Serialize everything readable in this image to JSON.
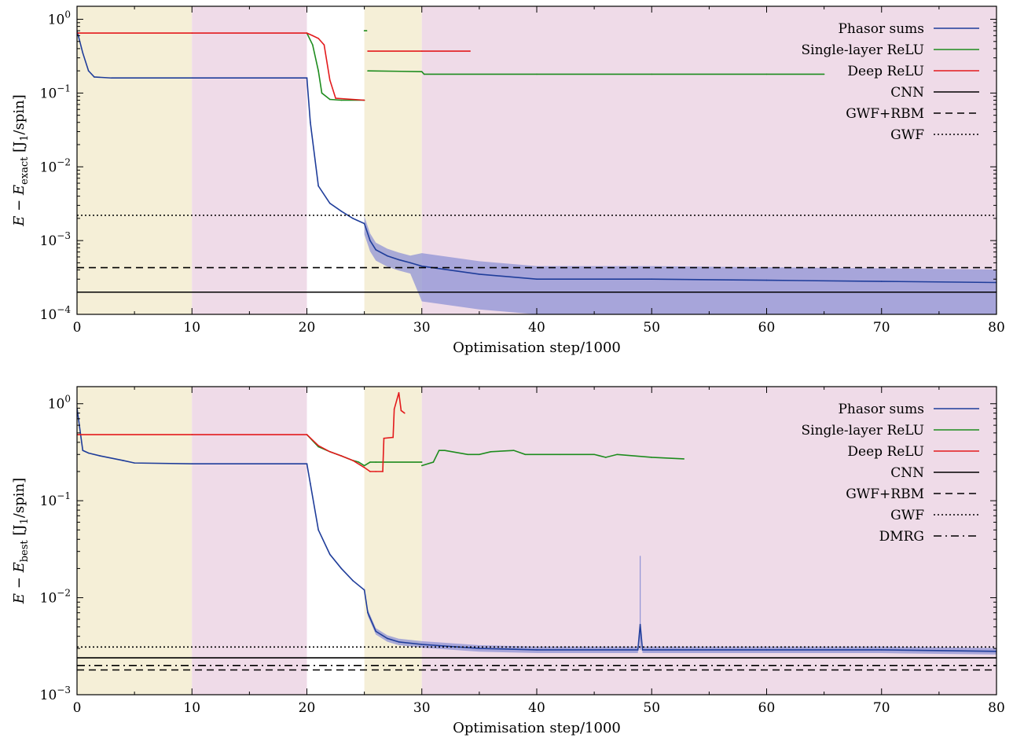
{
  "chart_data": [
    {
      "type": "line",
      "xlabel": "Optimisation step/1000",
      "ylabel": {
        "main": "E − E",
        "sub": "exact",
        "unit": " [J",
        "unit_sub": "1",
        "unit_end": "/spin]"
      },
      "xlim": [
        0,
        80
      ],
      "ylim": [
        0.0001,
        1.5
      ],
      "yscale": "log",
      "x_ticks": [
        "0",
        "10",
        "20",
        "30",
        "40",
        "50",
        "60",
        "70",
        "80"
      ],
      "y_ticks": [
        {
          "base": "10",
          "exp": "0",
          "value": 1
        },
        {
          "base": "10",
          "exp": "−1",
          "value": 0.1
        },
        {
          "base": "10",
          "exp": "−2",
          "value": 0.01
        },
        {
          "base": "10",
          "exp": "−3",
          "value": 0.001
        },
        {
          "base": "10",
          "exp": "−4",
          "value": 0.0001
        }
      ],
      "shaded_regions": [
        {
          "x": [
            0,
            10
          ],
          "color": "#f5efd7"
        },
        {
          "x": [
            10,
            20
          ],
          "color": "#efdbe8"
        },
        {
          "x": [
            25,
            30
          ],
          "color": "#f5efd7"
        },
        {
          "x": [
            30,
            80
          ],
          "color": "#efdbe8"
        }
      ],
      "legend_position": "top-right",
      "series": [
        {
          "name": "Phasor sums",
          "color": "#1f3d9a",
          "style": "solid",
          "x": [
            0,
            0.5,
            1,
            1.5,
            3,
            10,
            20,
            20.3,
            21,
            22,
            23,
            24,
            25,
            25.5,
            26,
            27,
            28,
            29,
            30,
            35,
            40,
            50,
            60,
            70,
            80
          ],
          "y": [
            0.7,
            0.35,
            0.2,
            0.165,
            0.16,
            0.16,
            0.16,
            0.04,
            0.0055,
            0.0032,
            0.0025,
            0.002,
            0.0017,
            0.001,
            0.00075,
            0.00062,
            0.00055,
            0.0005,
            0.00045,
            0.00035,
            0.0003,
            0.0003,
            0.00029,
            0.00028,
            0.00027
          ],
          "noise_band": "light blue band from about 2e-4 to 5e-4 after step 25"
        },
        {
          "name": "Single-layer ReLU",
          "color": "#1e8c1e",
          "style": "solid",
          "segments": [
            {
              "x": [
                20,
                20.5,
                21,
                21.3,
                22,
                23,
                25
              ],
              "y": [
                0.65,
                0.45,
                0.2,
                0.1,
                0.082,
                0.08,
                0.08
              ]
            },
            {
              "x": [
                25,
                25.2
              ],
              "y": [
                0.7,
                0.7
              ]
            },
            {
              "x": [
                25.3,
                30,
                30.2,
                40,
                50,
                60,
                65
              ],
              "y": [
                0.2,
                0.195,
                0.18,
                0.18,
                0.18,
                0.18,
                0.18
              ]
            }
          ]
        },
        {
          "name": "Deep ReLU",
          "color": "#e31a1c",
          "style": "solid",
          "segments": [
            {
              "x": [
                0,
                10,
                20,
                20.5,
                21,
                21.5,
                22,
                22.5,
                25
              ],
              "y": [
                0.65,
                0.65,
                0.65,
                0.6,
                0.55,
                0.45,
                0.15,
                0.085,
                0.08
              ]
            },
            {
              "x": [
                25.3,
                30,
                34.2
              ],
              "y": [
                0.37,
                0.37,
                0.37
              ]
            }
          ]
        },
        {
          "name": "CNN",
          "color": "#000000",
          "style": "solid",
          "y_const": 0.0002
        },
        {
          "name": "GWF+RBM",
          "color": "#000000",
          "style": "dashed",
          "y_const": 0.00043
        },
        {
          "name": "GWF",
          "color": "#000000",
          "style": "dotted",
          "y_const": 0.0022
        }
      ]
    },
    {
      "type": "line",
      "xlabel": "Optimisation step/1000",
      "ylabel": {
        "main": "E − E",
        "sub": "best",
        "unit": " [J",
        "unit_sub": "1",
        "unit_end": "/spin]"
      },
      "xlim": [
        0,
        80
      ],
      "ylim": [
        0.001,
        1.5
      ],
      "yscale": "log",
      "x_ticks": [
        "0",
        "10",
        "20",
        "30",
        "40",
        "50",
        "60",
        "70",
        "80"
      ],
      "y_ticks": [
        {
          "base": "10",
          "exp": "0",
          "value": 1
        },
        {
          "base": "10",
          "exp": "−1",
          "value": 0.1
        },
        {
          "base": "10",
          "exp": "−2",
          "value": 0.01
        },
        {
          "base": "10",
          "exp": "−3",
          "value": 0.001
        }
      ],
      "shaded_regions": [
        {
          "x": [
            0,
            10
          ],
          "color": "#f5efd7"
        },
        {
          "x": [
            10,
            20
          ],
          "color": "#efdbe8"
        },
        {
          "x": [
            25,
            30
          ],
          "color": "#f5efd7"
        },
        {
          "x": [
            30,
            80
          ],
          "color": "#efdbe8"
        }
      ],
      "legend_position": "top-right",
      "series": [
        {
          "name": "Phasor sums",
          "color": "#1f3d9a",
          "style": "solid",
          "x": [
            0,
            0.5,
            1,
            2,
            4,
            5,
            10,
            20,
            20.3,
            21,
            22,
            23,
            24,
            25,
            25.3,
            26,
            27,
            28,
            30,
            35,
            40,
            48.8,
            49,
            49.2,
            50,
            60,
            70,
            80
          ],
          "y": [
            0.9,
            0.33,
            0.31,
            0.29,
            0.26,
            0.245,
            0.24,
            0.24,
            0.15,
            0.05,
            0.028,
            0.02,
            0.015,
            0.012,
            0.007,
            0.0045,
            0.0038,
            0.0035,
            0.0033,
            0.003,
            0.0029,
            0.0029,
            0.0053,
            0.0029,
            0.0029,
            0.0029,
            0.0029,
            0.0028
          ],
          "noise_band": "light blue band around the curve after step 25 with a spike to about 0.027 near step 49"
        },
        {
          "name": "Single-layer ReLU",
          "color": "#1e8c1e",
          "style": "solid",
          "segments": [
            {
              "x": [
                20,
                21,
                22,
                23,
                24,
                24.5,
                25,
                25.5,
                26,
                30
              ],
              "y": [
                0.48,
                0.36,
                0.32,
                0.29,
                0.26,
                0.25,
                0.23,
                0.25,
                0.25,
                0.25
              ]
            },
            {
              "x": [
                30,
                31,
                31.5,
                32,
                34,
                35,
                36,
                38,
                39,
                42,
                45,
                46,
                47,
                50,
                52.8
              ],
              "y": [
                0.23,
                0.25,
                0.33,
                0.33,
                0.3,
                0.3,
                0.32,
                0.33,
                0.3,
                0.3,
                0.3,
                0.28,
                0.3,
                0.28,
                0.27
              ]
            }
          ]
        },
        {
          "name": "Deep ReLU",
          "color": "#e31a1c",
          "style": "solid",
          "segments": [
            {
              "x": [
                0,
                10,
                20,
                21,
                22,
                23,
                24,
                25,
                25.5,
                26,
                26.6,
                26.7,
                27.5,
                27.6,
                28,
                28.2,
                28.5
              ],
              "y": [
                0.48,
                0.48,
                0.48,
                0.37,
                0.32,
                0.29,
                0.26,
                0.22,
                0.2,
                0.2,
                0.2,
                0.44,
                0.45,
                0.88,
                1.3,
                0.85,
                0.8
              ]
            }
          ]
        },
        {
          "name": "CNN",
          "color": "#000000",
          "style": "solid",
          "y_const": 0.0024
        },
        {
          "name": "GWF+RBM",
          "color": "#000000",
          "style": "dashed",
          "y_const": 0.0018
        },
        {
          "name": "GWF",
          "color": "#000000",
          "style": "dotted",
          "y_const": 0.0031
        },
        {
          "name": "DMRG",
          "color": "#000000",
          "style": "dashdot",
          "y_const": 0.002
        }
      ]
    }
  ]
}
